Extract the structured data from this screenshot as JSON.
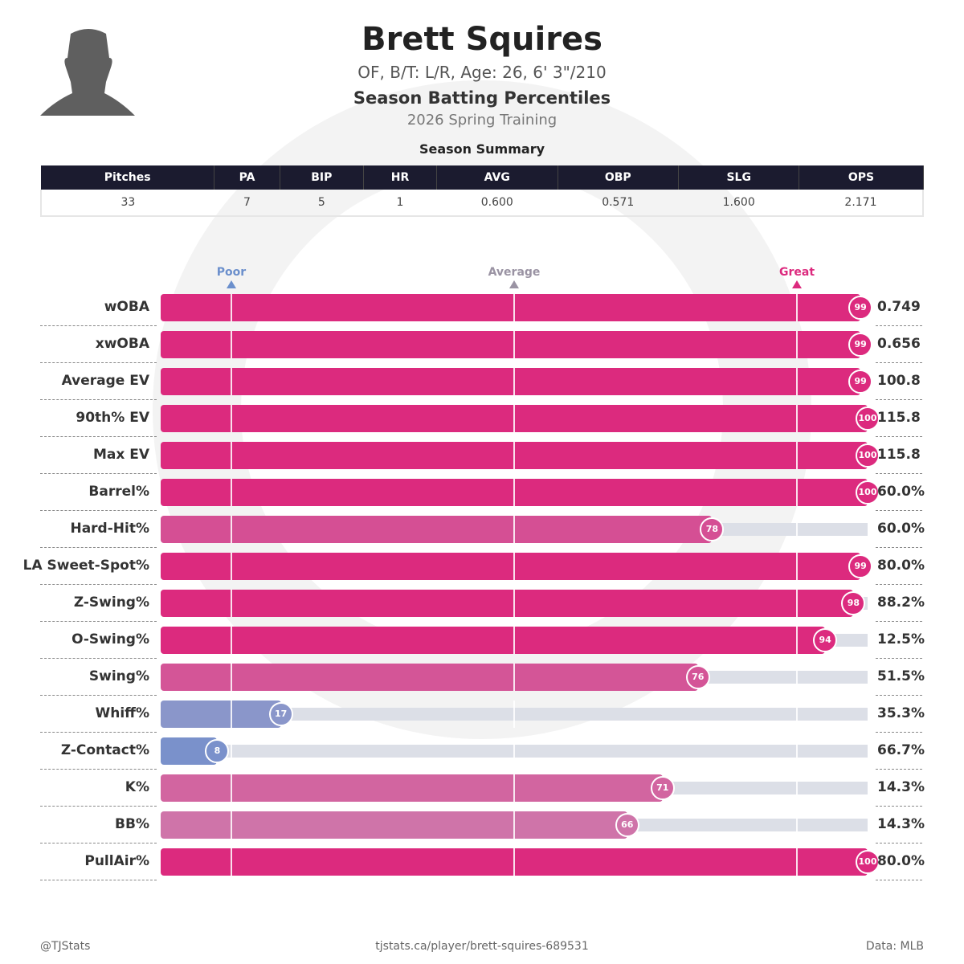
{
  "header": {
    "name": "Brett Squires",
    "bio": "OF, B/T: L/R, Age: 26, 6' 3\"/210",
    "subtitle": "Season Batting Percentiles",
    "season": "2026 Spring Training"
  },
  "summary": {
    "title": "Season Summary",
    "columns": [
      "Pitches",
      "PA",
      "BIP",
      "HR",
      "AVG",
      "OBP",
      "SLG",
      "OPS"
    ],
    "values": [
      "33",
      "7",
      "5",
      "1",
      "0.600",
      "0.571",
      "1.600",
      "2.171"
    ]
  },
  "chart_data": {
    "type": "bar",
    "orientation": "horizontal",
    "xlim": [
      0,
      100
    ],
    "markers": [
      {
        "label": "Poor",
        "value": 10,
        "color": "#6b8fcc"
      },
      {
        "label": "Average",
        "value": 50,
        "color": "#9a93a3"
      },
      {
        "label": "Great",
        "value": 90,
        "color": "#dc2a7e"
      }
    ],
    "color_scale": {
      "low": "#6b8dcc",
      "mid": "#c6a6c6",
      "high": "#dc2a7e"
    },
    "rows": [
      {
        "metric": "wOBA",
        "percentile": 99,
        "value": "0.749"
      },
      {
        "metric": "xwOBA",
        "percentile": 99,
        "value": "0.656"
      },
      {
        "metric": "Average EV",
        "percentile": 99,
        "value": "100.8"
      },
      {
        "metric": "90th% EV",
        "percentile": 100,
        "value": "115.8"
      },
      {
        "metric": "Max EV",
        "percentile": 100,
        "value": "115.8"
      },
      {
        "metric": "Barrel%",
        "percentile": 100,
        "value": "60.0%"
      },
      {
        "metric": "Hard-Hit%",
        "percentile": 78,
        "value": "60.0%"
      },
      {
        "metric": "LA Sweet-Spot%",
        "percentile": 99,
        "value": "80.0%"
      },
      {
        "metric": "Z-Swing%",
        "percentile": 98,
        "value": "88.2%"
      },
      {
        "metric": "O-Swing%",
        "percentile": 94,
        "value": "12.5%"
      },
      {
        "metric": "Swing%",
        "percentile": 76,
        "value": "51.5%"
      },
      {
        "metric": "Whiff%",
        "percentile": 17,
        "value": "35.3%"
      },
      {
        "metric": "Z-Contact%",
        "percentile": 8,
        "value": "66.7%"
      },
      {
        "metric": "K%",
        "percentile": 71,
        "value": "14.3%"
      },
      {
        "metric": "BB%",
        "percentile": 66,
        "value": "14.3%"
      },
      {
        "metric": "PullAir%",
        "percentile": 100,
        "value": "80.0%"
      }
    ]
  },
  "footer": {
    "left": "@TJStats",
    "center": "tjstats.ca/player/brett-squires-689531",
    "right": "Data: MLB"
  }
}
